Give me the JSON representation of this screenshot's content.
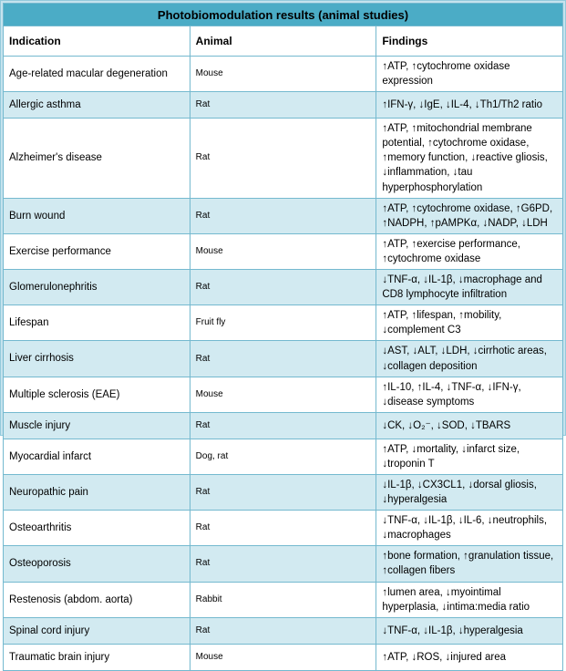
{
  "title": "Photobiomodulation results (animal studies)",
  "columns": [
    "Indication",
    "Animal",
    "Findings"
  ],
  "colors": {
    "title_bar": "#4bacc6",
    "alt_row": "#d2eaf1",
    "border": "#74b9cf",
    "frame_background": "#c6e3ee",
    "title_text": "#ffffff",
    "body_text": "#000000"
  },
  "rows": [
    {
      "indication": "Age-related macular degeneration",
      "animal": "Mouse",
      "findings": "↑ATP, ↑cytochrome oxidase expression"
    },
    {
      "indication": "Allergic asthma",
      "animal": "Rat",
      "findings": "↑IFN-γ, ↓IgE, ↓IL-4, ↓Th1/Th2 ratio"
    },
    {
      "indication": "Alzheimer's disease",
      "animal": "Rat",
      "findings": "↑ATP, ↑mitochondrial membrane potential, ↑cytochrome oxidase, ↑memory function, ↓reactive gliosis, ↓inflammation, ↓tau hyperphosphorylation"
    },
    {
      "indication": "Burn wound",
      "animal": "Rat",
      "findings": "↑ATP, ↑cytochrome oxidase, ↑G6PD, ↑NADPH, ↑pAMPKα, ↓NADP, ↓LDH"
    },
    {
      "indication": "Exercise performance",
      "animal": "Mouse",
      "findings": "↑ATP, ↑exercise performance, ↑cytochrome oxidase"
    },
    {
      "indication": "Glomerulonephritis",
      "animal": "Rat",
      "findings": "↓TNF-α, ↓IL-1β, ↓macrophage and CD8 lymphocyte infiltration"
    },
    {
      "indication": "Lifespan",
      "animal": "Fruit fly",
      "findings": "↑ATP, ↑lifespan, ↑mobility, ↓complement C3"
    },
    {
      "indication": "Liver cirrhosis",
      "animal": "Rat",
      "findings": "↓AST, ↓ALT, ↓LDH, ↓cirrhotic areas, ↓collagen deposition"
    },
    {
      "indication": "Multiple sclerosis (EAE)",
      "animal": "Mouse",
      "findings": "↑IL-10, ↑IL-4, ↓TNF-α, ↓IFN-γ, ↓disease symptoms"
    },
    {
      "indication": "Muscle injury",
      "animal": "Rat",
      "findings": "↓CK, ↓O₂⁻, ↓SOD, ↓TBARS"
    },
    {
      "indication": "Myocardial infarct",
      "animal": "Dog, rat",
      "findings": "↑ATP, ↓mortality, ↓infarct size, ↓troponin T"
    },
    {
      "indication": "Neuropathic pain",
      "animal": "Rat",
      "findings": "↓IL-1β, ↓CX3CL1, ↓dorsal gliosis, ↓hyperalgesia"
    },
    {
      "indication": "Osteoarthritis",
      "animal": "Rat",
      "findings": "↓TNF-α, ↓IL-1β, ↓IL-6, ↓neutrophils, ↓macrophages"
    },
    {
      "indication": "Osteoporosis",
      "animal": "Rat",
      "findings": "↑bone formation, ↑granulation tissue, ↑collagen fibers"
    },
    {
      "indication": "Restenosis (abdom. aorta)",
      "animal": "Rabbit",
      "findings": "↑lumen area, ↓myointimal hyperplasia, ↓intima:media ratio"
    },
    {
      "indication": "Spinal cord injury",
      "animal": "Rat",
      "findings": "↓TNF-α, ↓IL-1β, ↓hyperalgesia"
    },
    {
      "indication": "Traumatic brain injury",
      "animal": "Mouse",
      "findings": "↑ATP, ↓ROS, ↓injured area"
    }
  ]
}
